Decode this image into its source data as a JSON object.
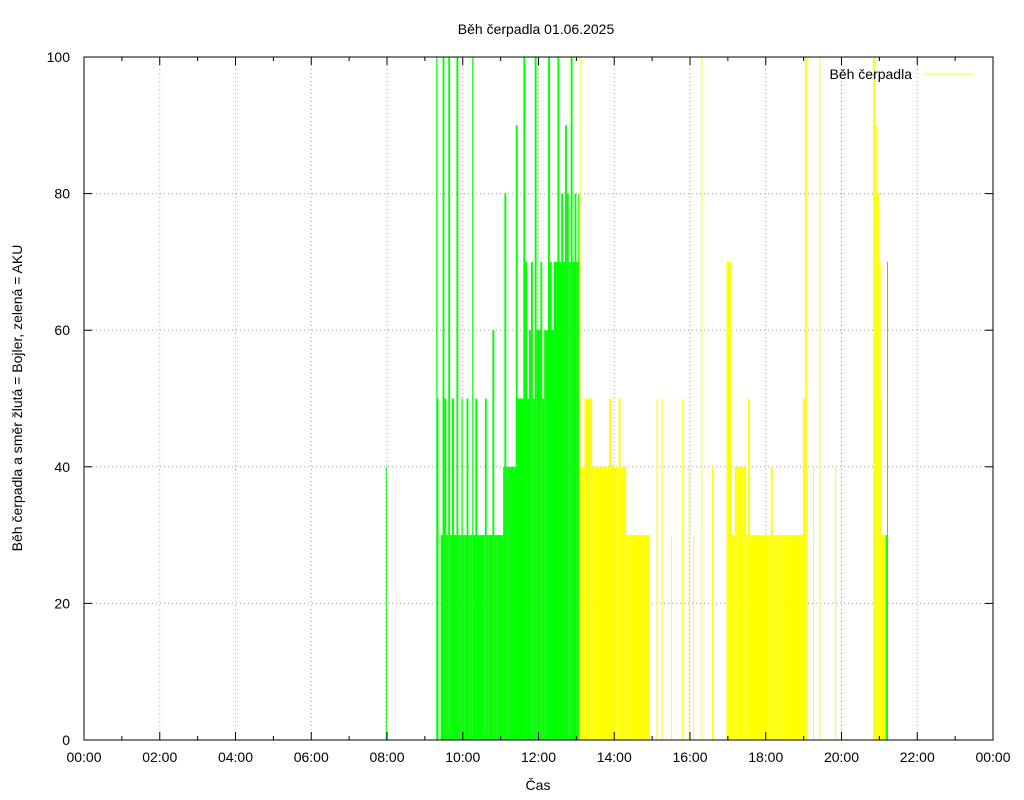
{
  "chart_data": {
    "type": "bar",
    "title": "Běh čerpadla 01.06.2025",
    "xlabel": "Čas",
    "ylabel": "Běh čerpadla a směr žlutá = Bojler, zelená = AKU",
    "ylim": [
      0,
      100
    ],
    "xlim": [
      "00:00",
      "24:00"
    ],
    "y_ticks": [
      "0",
      "20",
      "40",
      "60",
      "80",
      "100"
    ],
    "x_ticks": [
      "00:00",
      "02:00",
      "04:00",
      "06:00",
      "08:00",
      "10:00",
      "12:00",
      "14:00",
      "16:00",
      "18:00",
      "20:00",
      "22:00",
      "00:00"
    ],
    "grid": true,
    "legend": {
      "placement": "top-right",
      "label": "Běh čerpadla",
      "color": "#ffff00"
    },
    "colors": {
      "AKU": "#00ff00",
      "Bojler": "#ffff00"
    },
    "series": [
      {
        "direction": "AKU",
        "color": "#00ff00",
        "points": [
          [
            "07:58",
            40
          ],
          [
            "09:18",
            100
          ],
          [
            "09:20",
            50
          ],
          [
            "09:25",
            30
          ],
          [
            "09:28",
            100
          ],
          [
            "09:31",
            50
          ],
          [
            "09:34",
            30
          ],
          [
            "09:37",
            100
          ],
          [
            "09:40",
            30
          ],
          [
            "09:43",
            50
          ],
          [
            "09:46",
            30
          ],
          [
            "09:50",
            100
          ],
          [
            "09:53",
            30
          ],
          [
            "09:56",
            30
          ],
          [
            "09:58",
            50
          ],
          [
            "10:00",
            30
          ],
          [
            "10:03",
            30
          ],
          [
            "10:06",
            50
          ],
          [
            "10:09",
            30
          ],
          [
            "10:12",
            30
          ],
          [
            "10:15",
            100
          ],
          [
            "10:17",
            30
          ],
          [
            "10:20",
            50
          ],
          [
            "10:23",
            30
          ],
          [
            "10:26",
            30
          ],
          [
            "10:29",
            30
          ],
          [
            "10:32",
            30
          ],
          [
            "10:35",
            50
          ],
          [
            "10:38",
            30
          ],
          [
            "10:41",
            30
          ],
          [
            "10:44",
            30
          ],
          [
            "10:47",
            60
          ],
          [
            "10:50",
            30
          ],
          [
            "10:53",
            30
          ],
          [
            "10:56",
            30
          ],
          [
            "10:59",
            30
          ],
          [
            "11:01",
            30
          ],
          [
            "11:04",
            40
          ],
          [
            "11:06",
            80
          ],
          [
            "11:09",
            40
          ],
          [
            "11:12",
            40
          ],
          [
            "11:15",
            40
          ],
          [
            "11:18",
            40
          ],
          [
            "11:21",
            40
          ],
          [
            "11:24",
            90
          ],
          [
            "11:27",
            50
          ],
          [
            "11:30",
            50
          ],
          [
            "11:33",
            50
          ],
          [
            "11:36",
            100
          ],
          [
            "11:39",
            70
          ],
          [
            "11:42",
            50
          ],
          [
            "11:45",
            60
          ],
          [
            "11:48",
            70
          ],
          [
            "11:51",
            50
          ],
          [
            "11:54",
            100
          ],
          [
            "11:57",
            60
          ],
          [
            "12:00",
            60
          ],
          [
            "12:03",
            70
          ],
          [
            "12:06",
            50
          ],
          [
            "12:09",
            60
          ],
          [
            "12:12",
            60
          ],
          [
            "12:15",
            100
          ],
          [
            "12:18",
            70
          ],
          [
            "12:21",
            60
          ],
          [
            "12:24",
            70
          ],
          [
            "12:27",
            70
          ],
          [
            "12:30",
            100
          ],
          [
            "12:33",
            70
          ],
          [
            "12:36",
            80
          ],
          [
            "12:39",
            70
          ],
          [
            "12:42",
            90
          ],
          [
            "12:45",
            80
          ],
          [
            "12:48",
            70
          ],
          [
            "12:51",
            100
          ],
          [
            "12:54",
            70
          ],
          [
            "12:57",
            80
          ],
          [
            "13:00",
            70
          ],
          [
            "13:03",
            80
          ],
          [
            "21:10",
            30
          ],
          [
            "21:12",
            70
          ]
        ]
      },
      {
        "direction": "Bojler",
        "color": "#ffff00",
        "points": [
          [
            "13:05",
            100
          ],
          [
            "13:06",
            40
          ],
          [
            "13:10",
            40
          ],
          [
            "13:13",
            50
          ],
          [
            "13:16",
            50
          ],
          [
            "13:19",
            50
          ],
          [
            "13:22",
            50
          ],
          [
            "13:25",
            40
          ],
          [
            "13:28",
            40
          ],
          [
            "13:31",
            40
          ],
          [
            "13:34",
            40
          ],
          [
            "13:37",
            40
          ],
          [
            "13:40",
            40
          ],
          [
            "13:43",
            40
          ],
          [
            "13:46",
            40
          ],
          [
            "13:49",
            40
          ],
          [
            "13:52",
            50
          ],
          [
            "13:55",
            40
          ],
          [
            "13:58",
            40
          ],
          [
            "14:01",
            40
          ],
          [
            "14:04",
            40
          ],
          [
            "14:07",
            50
          ],
          [
            "14:10",
            40
          ],
          [
            "14:13",
            40
          ],
          [
            "14:16",
            40
          ],
          [
            "14:19",
            30
          ],
          [
            "14:22",
            30
          ],
          [
            "14:25",
            30
          ],
          [
            "14:28",
            30
          ],
          [
            "14:31",
            30
          ],
          [
            "14:34",
            30
          ],
          [
            "14:37",
            30
          ],
          [
            "14:40",
            30
          ],
          [
            "14:43",
            30
          ],
          [
            "14:46",
            30
          ],
          [
            "14:49",
            30
          ],
          [
            "14:52",
            30
          ],
          [
            "14:55",
            30
          ],
          [
            "15:07",
            50
          ],
          [
            "15:15",
            50
          ],
          [
            "15:30",
            30
          ],
          [
            "15:47",
            50
          ],
          [
            "15:58",
            40
          ],
          [
            "16:05",
            30
          ],
          [
            "16:18",
            100
          ],
          [
            "16:35",
            40
          ],
          [
            "16:58",
            70
          ],
          [
            "17:02",
            70
          ],
          [
            "17:05",
            30
          ],
          [
            "17:08",
            30
          ],
          [
            "17:11",
            40
          ],
          [
            "17:14",
            40
          ],
          [
            "17:17",
            40
          ],
          [
            "17:20",
            40
          ],
          [
            "17:23",
            40
          ],
          [
            "17:26",
            40
          ],
          [
            "17:29",
            30
          ],
          [
            "17:32",
            50
          ],
          [
            "17:35",
            30
          ],
          [
            "17:38",
            30
          ],
          [
            "17:41",
            30
          ],
          [
            "17:44",
            30
          ],
          [
            "17:47",
            30
          ],
          [
            "17:50",
            30
          ],
          [
            "17:53",
            30
          ],
          [
            "17:56",
            30
          ],
          [
            "17:59",
            30
          ],
          [
            "18:02",
            30
          ],
          [
            "18:05",
            30
          ],
          [
            "18:08",
            40
          ],
          [
            "18:11",
            30
          ],
          [
            "18:14",
            30
          ],
          [
            "18:17",
            30
          ],
          [
            "18:20",
            30
          ],
          [
            "18:23",
            30
          ],
          [
            "18:26",
            30
          ],
          [
            "18:29",
            30
          ],
          [
            "18:32",
            30
          ],
          [
            "18:35",
            30
          ],
          [
            "18:38",
            30
          ],
          [
            "18:41",
            30
          ],
          [
            "18:44",
            30
          ],
          [
            "18:47",
            30
          ],
          [
            "18:50",
            30
          ],
          [
            "18:53",
            30
          ],
          [
            "18:56",
            30
          ],
          [
            "18:59",
            50
          ],
          [
            "19:02",
            100
          ],
          [
            "19:05",
            40
          ],
          [
            "19:15",
            40
          ],
          [
            "19:25",
            100
          ],
          [
            "19:50",
            40
          ],
          [
            "20:50",
            100
          ],
          [
            "20:52",
            100
          ],
          [
            "20:54",
            90
          ],
          [
            "20:56",
            80
          ],
          [
            "20:58",
            80
          ],
          [
            "21:00",
            70
          ],
          [
            "21:02",
            50
          ],
          [
            "21:04",
            30
          ],
          [
            "21:06",
            30
          ],
          [
            "21:08",
            30
          ]
        ]
      }
    ]
  }
}
